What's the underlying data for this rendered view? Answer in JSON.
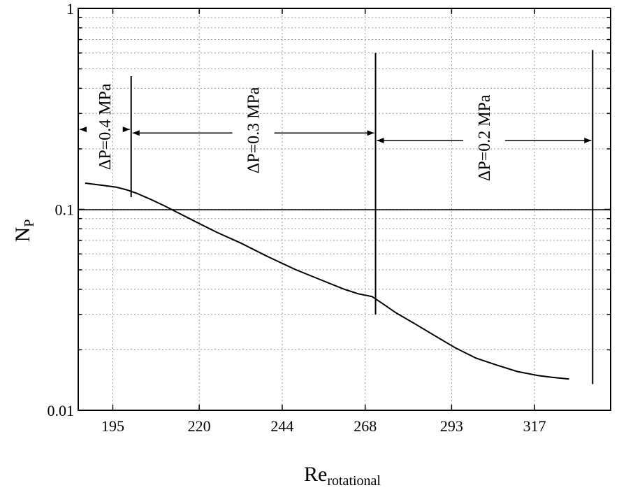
{
  "chart_data": {
    "type": "line",
    "x_axis": {
      "label_main": "Re",
      "label_sub": "rotational",
      "scale": "linear",
      "range": [
        185,
        339
      ],
      "ticks": [
        195,
        220,
        244,
        268,
        293,
        317
      ],
      "tick_labels": [
        "195",
        "220",
        "244",
        "268",
        "293",
        "317"
      ]
    },
    "y_axis": {
      "label_main": "N",
      "label_sub": "P",
      "scale": "log",
      "range": [
        0.01,
        1
      ],
      "tick_labels": [
        {
          "value": 0.01,
          "label": "0.01"
        },
        {
          "value": 0.1,
          "label": "0.1"
        },
        {
          "value": 1,
          "label": "1"
        }
      ]
    },
    "grid": true,
    "series": [
      {
        "x": [
          187,
          190,
          193,
          196,
          199,
          202,
          206,
          210,
          215,
          220,
          225,
          232,
          240,
          248,
          256,
          262,
          266,
          270,
          273,
          277,
          282,
          288,
          294,
          300,
          306,
          312,
          318,
          322,
          327
        ],
        "y": [
          0.135,
          0.133,
          0.131,
          0.129,
          0.125,
          0.12,
          0.112,
          0.104,
          0.094,
          0.085,
          0.077,
          0.068,
          0.058,
          0.05,
          0.044,
          0.04,
          0.038,
          0.0368,
          0.034,
          0.0305,
          0.0272,
          0.0236,
          0.0205,
          0.0182,
          0.0168,
          0.0156,
          0.0149,
          0.0146,
          0.0143
        ]
      }
    ],
    "boundaries": [
      {
        "x": 200.3,
        "y_range": [
          0.115,
          0.46
        ]
      },
      {
        "x": 271.0,
        "y_range": [
          0.03,
          0.6
        ]
      },
      {
        "x": 333.8,
        "y_range": [
          0.0135,
          0.62
        ]
      }
    ],
    "annotations": [
      {
        "text": "ΔP=0.4 MPa",
        "x_range": [
          185,
          200.3
        ],
        "y": 0.25
      },
      {
        "text": "ΔP=0.3 MPa",
        "x_range": [
          200.3,
          271.0
        ],
        "y": 0.24
      },
      {
        "text": "ΔP=0.2 MPa",
        "x_range": [
          271.0,
          333.8
        ],
        "y": 0.22
      }
    ]
  }
}
